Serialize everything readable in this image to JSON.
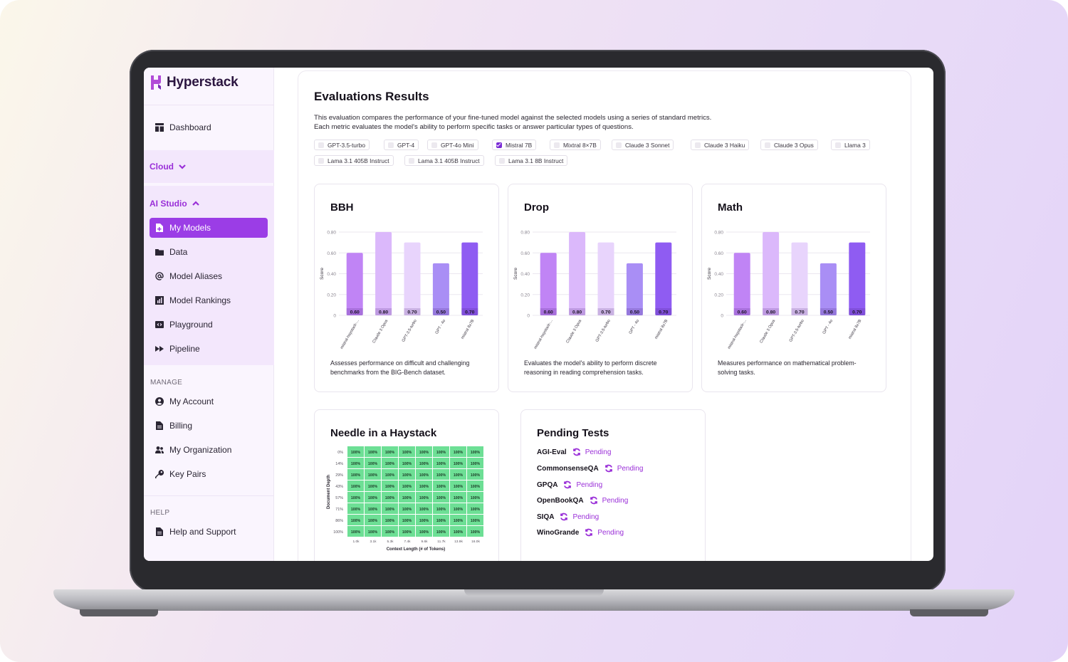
{
  "brand": {
    "name": "Hyperstack",
    "accent": "#9b3de6"
  },
  "sidebar": {
    "dashboard": "Dashboard",
    "cloud": "Cloud",
    "ai_studio": "AI Studio",
    "ai_items": [
      "My Models",
      "Data",
      "Model Aliases",
      "Model Rankings",
      "Playground",
      "Pipeline"
    ],
    "manage_label": "MANAGE",
    "manage_items": [
      "My Account",
      "Billing",
      "My Organization",
      "Key Pairs"
    ],
    "help_label": "HELP",
    "help_items": [
      "Help and Support"
    ]
  },
  "main": {
    "title": "Evaluations Results",
    "description_line1": "This evaluation compares the performance of your fine-tuned model against the selected models using a series of standard metrics.",
    "description_line2": "Each metric evaluates the model's ability to perform specific tasks or answer particular types of questions.",
    "models": [
      {
        "label": "GPT-3.5-turbo",
        "checked": false
      },
      {
        "label": "GPT-4",
        "checked": false
      },
      {
        "label": "GPT-4o Mini",
        "checked": false
      },
      {
        "label": "Mistral 7B",
        "checked": true
      },
      {
        "label": "Mixtral 8×7B",
        "checked": false
      },
      {
        "label": "Claude 3 Sonnet",
        "checked": false
      },
      {
        "label": "Claude 3 Haiku",
        "checked": false
      },
      {
        "label": "Claude 3 Opus",
        "checked": false
      },
      {
        "label": "Llama 3",
        "checked": false
      },
      {
        "label": "Lama 3.1 405B Instruct",
        "checked": false
      },
      {
        "label": "Lama 3.1 405B Instruct",
        "checked": false
      },
      {
        "label": "Lama 3.1 8B Instruct",
        "checked": false
      }
    ]
  },
  "chart_data": [
    {
      "type": "bar",
      "title": "BBH",
      "ylabel": "Score",
      "categories": [
        "mistral-haystack-...",
        "Claude 3 Opus",
        "GPT-3.5-turbo",
        "GPT - 4o",
        "mistral 8x7B"
      ],
      "values": [
        0.6,
        0.8,
        0.7,
        0.5,
        0.7
      ],
      "value_labels": [
        "0.60",
        "0.80",
        "0.70",
        "0.50",
        "0.70"
      ],
      "yticks": [
        "0",
        "0.20",
        "0.40",
        "0.60",
        "0.80"
      ],
      "ylim": [
        0,
        0.8
      ],
      "grid": true,
      "colors": [
        "#c084f5",
        "#dbb8fb",
        "#e8d4fc",
        "#a98ef5",
        "#8f5cf2"
      ],
      "note": "Assesses performance on difficult and challenging benchmarks from the BIG-Bench dataset."
    },
    {
      "type": "bar",
      "title": "Drop",
      "ylabel": "Score",
      "categories": [
        "mistral-haystack-...",
        "Claude 3 Opus",
        "GPT-3.5-turbo",
        "GPT - 4o",
        "mistral 8x7B"
      ],
      "values": [
        0.6,
        0.8,
        0.7,
        0.5,
        0.7
      ],
      "value_labels": [
        "0.60",
        "0.80",
        "0.70",
        "0.50",
        "0.70"
      ],
      "yticks": [
        "0",
        "0.20",
        "0.40",
        "0.60",
        "0.80"
      ],
      "ylim": [
        0,
        0.8
      ],
      "grid": true,
      "colors": [
        "#c084f5",
        "#dbb8fb",
        "#e8d4fc",
        "#a98ef5",
        "#8f5cf2"
      ],
      "note": "Evaluates the model's ability to perform discrete reasoning in reading comprehension tasks."
    },
    {
      "type": "bar",
      "title": "Math",
      "ylabel": "Score",
      "categories": [
        "mistral-haystack-...",
        "Claude 3 Opus",
        "GPT-3.5-turbo",
        "GPT - 4o",
        "mistral 8x7B"
      ],
      "values": [
        0.6,
        0.8,
        0.7,
        0.5,
        0.7
      ],
      "value_labels": [
        "0.60",
        "0.80",
        "0.70",
        "0.50",
        "0.70"
      ],
      "yticks": [
        "0",
        "0.20",
        "0.40",
        "0.60",
        "0.80"
      ],
      "ylim": [
        0,
        0.8
      ],
      "grid": true,
      "colors": [
        "#c084f5",
        "#dbb8fb",
        "#e8d4fc",
        "#a98ef5",
        "#8f5cf2"
      ],
      "note": "Measures performance on mathematical problem-solving tasks."
    },
    {
      "type": "heatmap",
      "title": "Needle in a Haystack",
      "ylabel": "Document Depth",
      "xlabel": "Context Length (# of Tokens)",
      "rows": [
        "0%",
        "14%",
        "29%",
        "43%",
        "57%",
        "71%",
        "86%",
        "100%"
      ],
      "cols": [
        "1.0k",
        "3.1k",
        "5.3k",
        "7.4k",
        "9.6k",
        "11.7k",
        "13.9k",
        "16.0k"
      ],
      "cell_value": "100%",
      "cell_color": "#6ddf95"
    }
  ],
  "pending": {
    "title": "Pending Tests",
    "items": [
      {
        "name": "AGI-Eval",
        "status": "Pending"
      },
      {
        "name": "CommonsenseQA",
        "status": "Pending"
      },
      {
        "name": "GPQA",
        "status": "Pending"
      },
      {
        "name": "OpenBookQA",
        "status": "Pending"
      },
      {
        "name": "SIQA",
        "status": "Pending"
      },
      {
        "name": "WinoGrande",
        "status": "Pending"
      }
    ]
  }
}
